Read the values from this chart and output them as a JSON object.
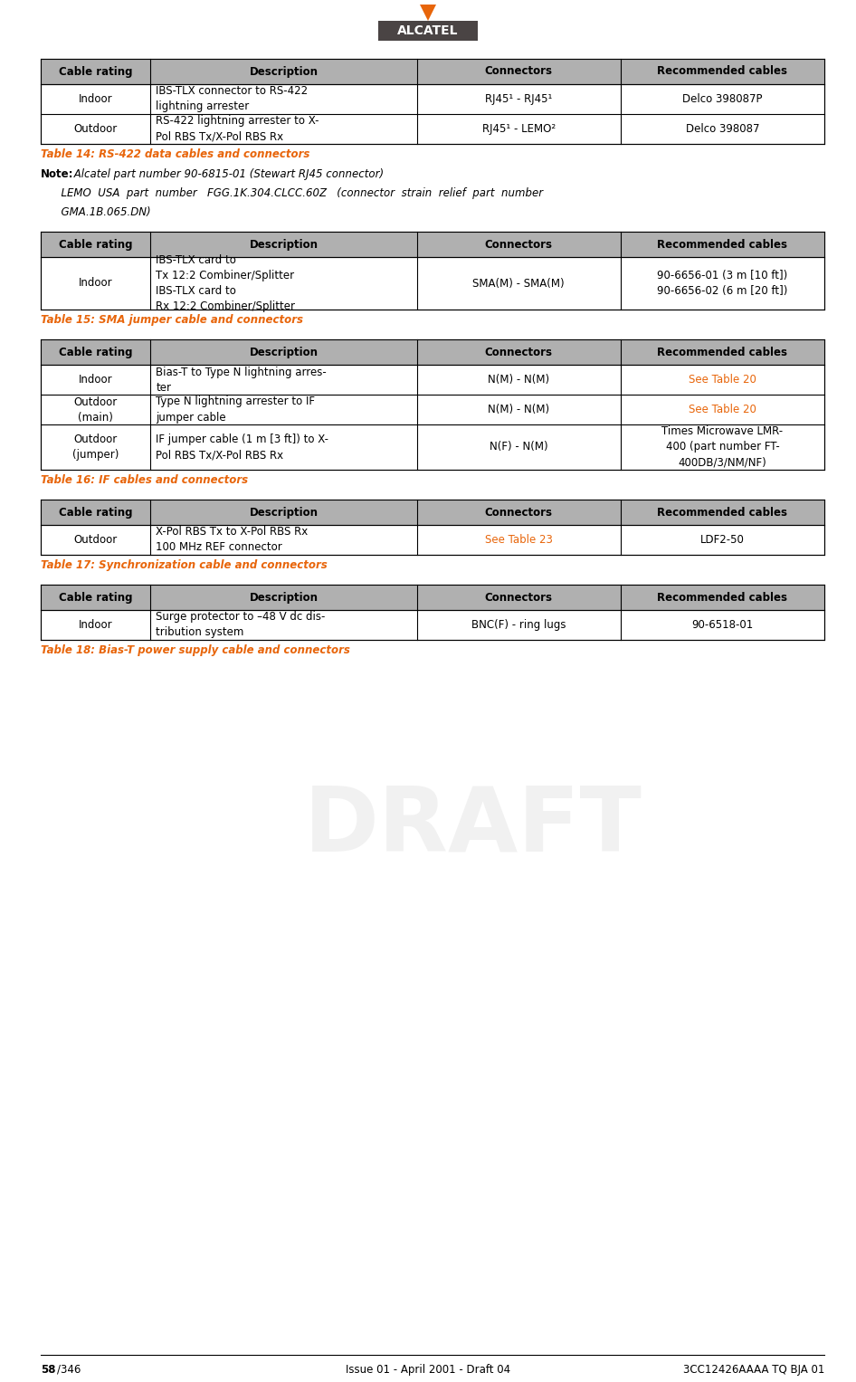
{
  "page_width": 9.46,
  "page_height": 15.27,
  "bg_color": "#ffffff",
  "text_color": "#000000",
  "header_bg": "#b0b0b0",
  "orange_color": "#e8650a",
  "alcatel_bg": "#4a4444",
  "footer_left": "58/346",
  "footer_center": "Issue 01 - April 2001 - Draft 04",
  "footer_right": "3CC12426AAAA TQ BJA 01",
  "table1_caption": "Table 14: RS-422 data cables and connectors",
  "table1_note_bold": "Note:",
  "table1_note_text": " Alcatel part number 90-6815-01 (Stewart RJ45 connector)",
  "table1_note2": "      LEMO  USA  part  number   FGG.1K.304.CLCC.60Z   (connector  strain  relief  part  number",
  "table1_note3": "      GMA.1B.065.DN)",
  "table2_caption": "Table 15: SMA jumper cable and connectors",
  "table3_caption": "Table 16: IF cables and connectors",
  "table4_caption": "Table 17: Synchronization cable and connectors",
  "table5_caption": "Table 18: Bias-T power supply cable and connectors",
  "col_headers": [
    "Cable rating",
    "Description",
    "Connectors",
    "Recommended cables"
  ],
  "table1_rows": [
    [
      "Indoor",
      "IBS-TLX connector to RS-422\nlightning arrester",
      "RJ45¹ - RJ45¹",
      "Delco 398087P"
    ],
    [
      "Outdoor",
      "RS-422 lightning arrester to X-\nPol RBS Tx/X-Pol RBS Rx",
      "RJ45¹ - LEMO²",
      "Delco 398087"
    ]
  ],
  "table2_rows": [
    [
      "Indoor",
      "IBS-TLX card to\nTx 12:2 Combiner/Splitter\nIBS-TLX card to\nRx 12:2 Combiner/Splitter",
      "SMA(M) - SMA(M)",
      "90-6656-01 (3 m [10 ft])\n90-6656-02 (6 m [20 ft])"
    ]
  ],
  "table3_rows": [
    [
      "Indoor",
      "Bias-T to Type N lightning arres-\nter",
      "N(M) - N(M)",
      "See Table 20"
    ],
    [
      "Outdoor\n(main)",
      "Type N lightning arrester to IF\njumper cable",
      "N(M) - N(M)",
      "See Table 20"
    ],
    [
      "Outdoor\n(jumper)",
      "IF jumper cable (1 m [3 ft]) to X-\nPol RBS Tx/X-Pol RBS Rx",
      "N(F) - N(M)",
      "Times Microwave LMR-\n400 (part number FT-\n400DB/3/NM/NF)"
    ]
  ],
  "table4_rows": [
    [
      "Outdoor",
      "X-Pol RBS Tx to X-Pol RBS Rx\n100 MHz REF connector",
      "See Table 23",
      "LDF2-50"
    ]
  ],
  "table5_rows": [
    [
      "Indoor",
      "Surge protector to –48 V dc dis-\ntribution system",
      "BNC(F) - ring lugs",
      "90-6518-01"
    ]
  ],
  "table3_ref_orange": [
    "See Table 20"
  ],
  "table4_ref_orange": [
    "See Table 23"
  ]
}
